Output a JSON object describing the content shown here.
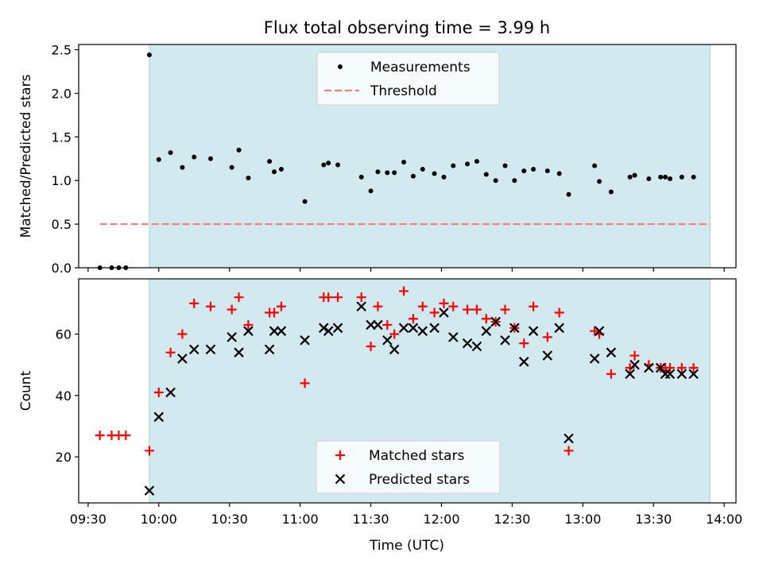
{
  "figure": {
    "title": "Flux total observing time = 3.99 h",
    "xlabel": "Time (UTC)",
    "xticks": [
      "09:30",
      "10:00",
      "10:30",
      "11:00",
      "11:30",
      "12:00",
      "12:30",
      "13:00",
      "13:30",
      "14:00"
    ]
  },
  "colors": {
    "shade": "#d2e9f0",
    "measurement": "#000000",
    "threshold": "#ff7575",
    "matched": "#ff0000",
    "predicted": "#000000"
  },
  "chart_data": [
    {
      "type": "scatter",
      "title": "Flux total observing time = 3.99 h",
      "ylabel": "Matched/Predicted stars",
      "xlim": [
        "09:26",
        "14:05"
      ],
      "ylim": [
        0,
        2.56
      ],
      "yticks": [
        "0.0",
        "0.5",
        "1.0",
        "1.5",
        "2.0",
        "2.5"
      ],
      "shaded_region": [
        "09:56",
        "13:54"
      ],
      "legend": {
        "placement": "top-center",
        "entries": [
          "Measurements",
          "Threshold"
        ]
      },
      "threshold": {
        "name": "Threshold",
        "value": 0.5,
        "x_range": [
          "09:35",
          "13:54"
        ]
      },
      "series": [
        {
          "name": "Measurements",
          "x": [
            "09:35",
            "09:40",
            "09:43",
            "09:46",
            "09:56",
            "10:00",
            "10:05",
            "10:10",
            "10:15",
            "10:22",
            "10:31",
            "10:34",
            "10:38",
            "10:47",
            "10:49",
            "10:52",
            "11:02",
            "11:10",
            "11:12",
            "11:16",
            "11:26",
            "11:30",
            "11:33",
            "11:37",
            "11:40",
            "11:44",
            "11:48",
            "11:52",
            "11:57",
            "12:01",
            "12:05",
            "12:11",
            "12:15",
            "12:19",
            "12:23",
            "12:27",
            "12:31",
            "12:35",
            "12:39",
            "12:45",
            "12:50",
            "12:54",
            "13:05",
            "13:07",
            "13:12",
            "13:20",
            "13:22",
            "13:28",
            "13:33",
            "13:35",
            "13:37",
            "13:42",
            "13:47"
          ],
          "y": [
            0.0,
            0.0,
            0.0,
            0.0,
            2.44,
            1.24,
            1.32,
            1.15,
            1.27,
            1.25,
            1.15,
            1.35,
            1.03,
            1.22,
            1.1,
            1.13,
            0.76,
            1.18,
            1.2,
            1.18,
            1.04,
            0.88,
            1.1,
            1.09,
            1.09,
            1.21,
            1.05,
            1.13,
            1.08,
            1.04,
            1.17,
            1.19,
            1.22,
            1.07,
            1.0,
            1.17,
            1.0,
            1.11,
            1.13,
            1.11,
            1.08,
            0.84,
            1.17,
            0.99,
            0.87,
            1.04,
            1.06,
            1.02,
            1.04,
            1.04,
            1.02,
            1.04,
            1.04
          ]
        }
      ]
    },
    {
      "type": "scatter",
      "ylabel": "Count",
      "xlim": [
        "09:26",
        "14:05"
      ],
      "ylim": [
        5,
        78
      ],
      "yticks": [
        "20",
        "40",
        "60"
      ],
      "shaded_region": [
        "09:56",
        "13:54"
      ],
      "legend": {
        "placement": "bottom-center",
        "entries": [
          "Matched stars",
          "Predicted stars"
        ]
      },
      "series": [
        {
          "name": "Matched stars",
          "marker": "+",
          "x": [
            "09:35",
            "09:40",
            "09:43",
            "09:46",
            "09:56",
            "10:00",
            "10:05",
            "10:10",
            "10:15",
            "10:22",
            "10:31",
            "10:34",
            "10:38",
            "10:47",
            "10:49",
            "10:52",
            "11:02",
            "11:10",
            "11:12",
            "11:16",
            "11:26",
            "11:30",
            "11:33",
            "11:37",
            "11:40",
            "11:44",
            "11:48",
            "11:52",
            "11:57",
            "12:01",
            "12:05",
            "12:11",
            "12:15",
            "12:19",
            "12:23",
            "12:27",
            "12:31",
            "12:35",
            "12:39",
            "12:45",
            "12:50",
            "12:54",
            "13:05",
            "13:07",
            "13:12",
            "13:20",
            "13:22",
            "13:28",
            "13:33",
            "13:35",
            "13:37",
            "13:42",
            "13:47"
          ],
          "y": [
            27,
            27,
            27,
            27,
            22,
            41,
            54,
            60,
            70,
            69,
            68,
            72,
            63,
            67,
            67,
            69,
            44,
            72,
            72,
            72,
            72,
            56,
            69,
            63,
            60,
            74,
            65,
            69,
            67,
            70,
            69,
            68,
            68,
            65,
            64,
            68,
            62,
            57,
            69,
            59,
            67,
            22,
            61,
            60,
            47,
            49,
            53,
            50,
            49,
            49,
            49,
            49,
            49
          ]
        },
        {
          "name": "Predicted stars",
          "marker": "x",
          "x": [
            "09:56",
            "10:00",
            "10:05",
            "10:10",
            "10:15",
            "10:22",
            "10:31",
            "10:34",
            "10:38",
            "10:47",
            "10:49",
            "10:52",
            "11:02",
            "11:10",
            "11:12",
            "11:16",
            "11:26",
            "11:30",
            "11:33",
            "11:37",
            "11:40",
            "11:44",
            "11:48",
            "11:52",
            "11:57",
            "12:01",
            "12:05",
            "12:11",
            "12:15",
            "12:19",
            "12:23",
            "12:27",
            "12:31",
            "12:35",
            "12:39",
            "12:45",
            "12:50",
            "12:54",
            "13:05",
            "13:07",
            "13:12",
            "13:20",
            "13:22",
            "13:28",
            "13:33",
            "13:35",
            "13:37",
            "13:42",
            "13:47"
          ],
          "y": [
            9,
            33,
            41,
            52,
            55,
            55,
            59,
            54,
            61,
            55,
            61,
            61,
            58,
            62,
            61,
            62,
            69,
            63,
            63,
            58,
            55,
            62,
            62,
            61,
            62,
            67,
            59,
            57,
            56,
            61,
            64,
            58,
            62,
            51,
            61,
            53,
            62,
            26,
            52,
            61,
            54,
            47,
            50,
            49,
            49,
            47,
            47,
            47,
            47
          ]
        }
      ]
    }
  ]
}
